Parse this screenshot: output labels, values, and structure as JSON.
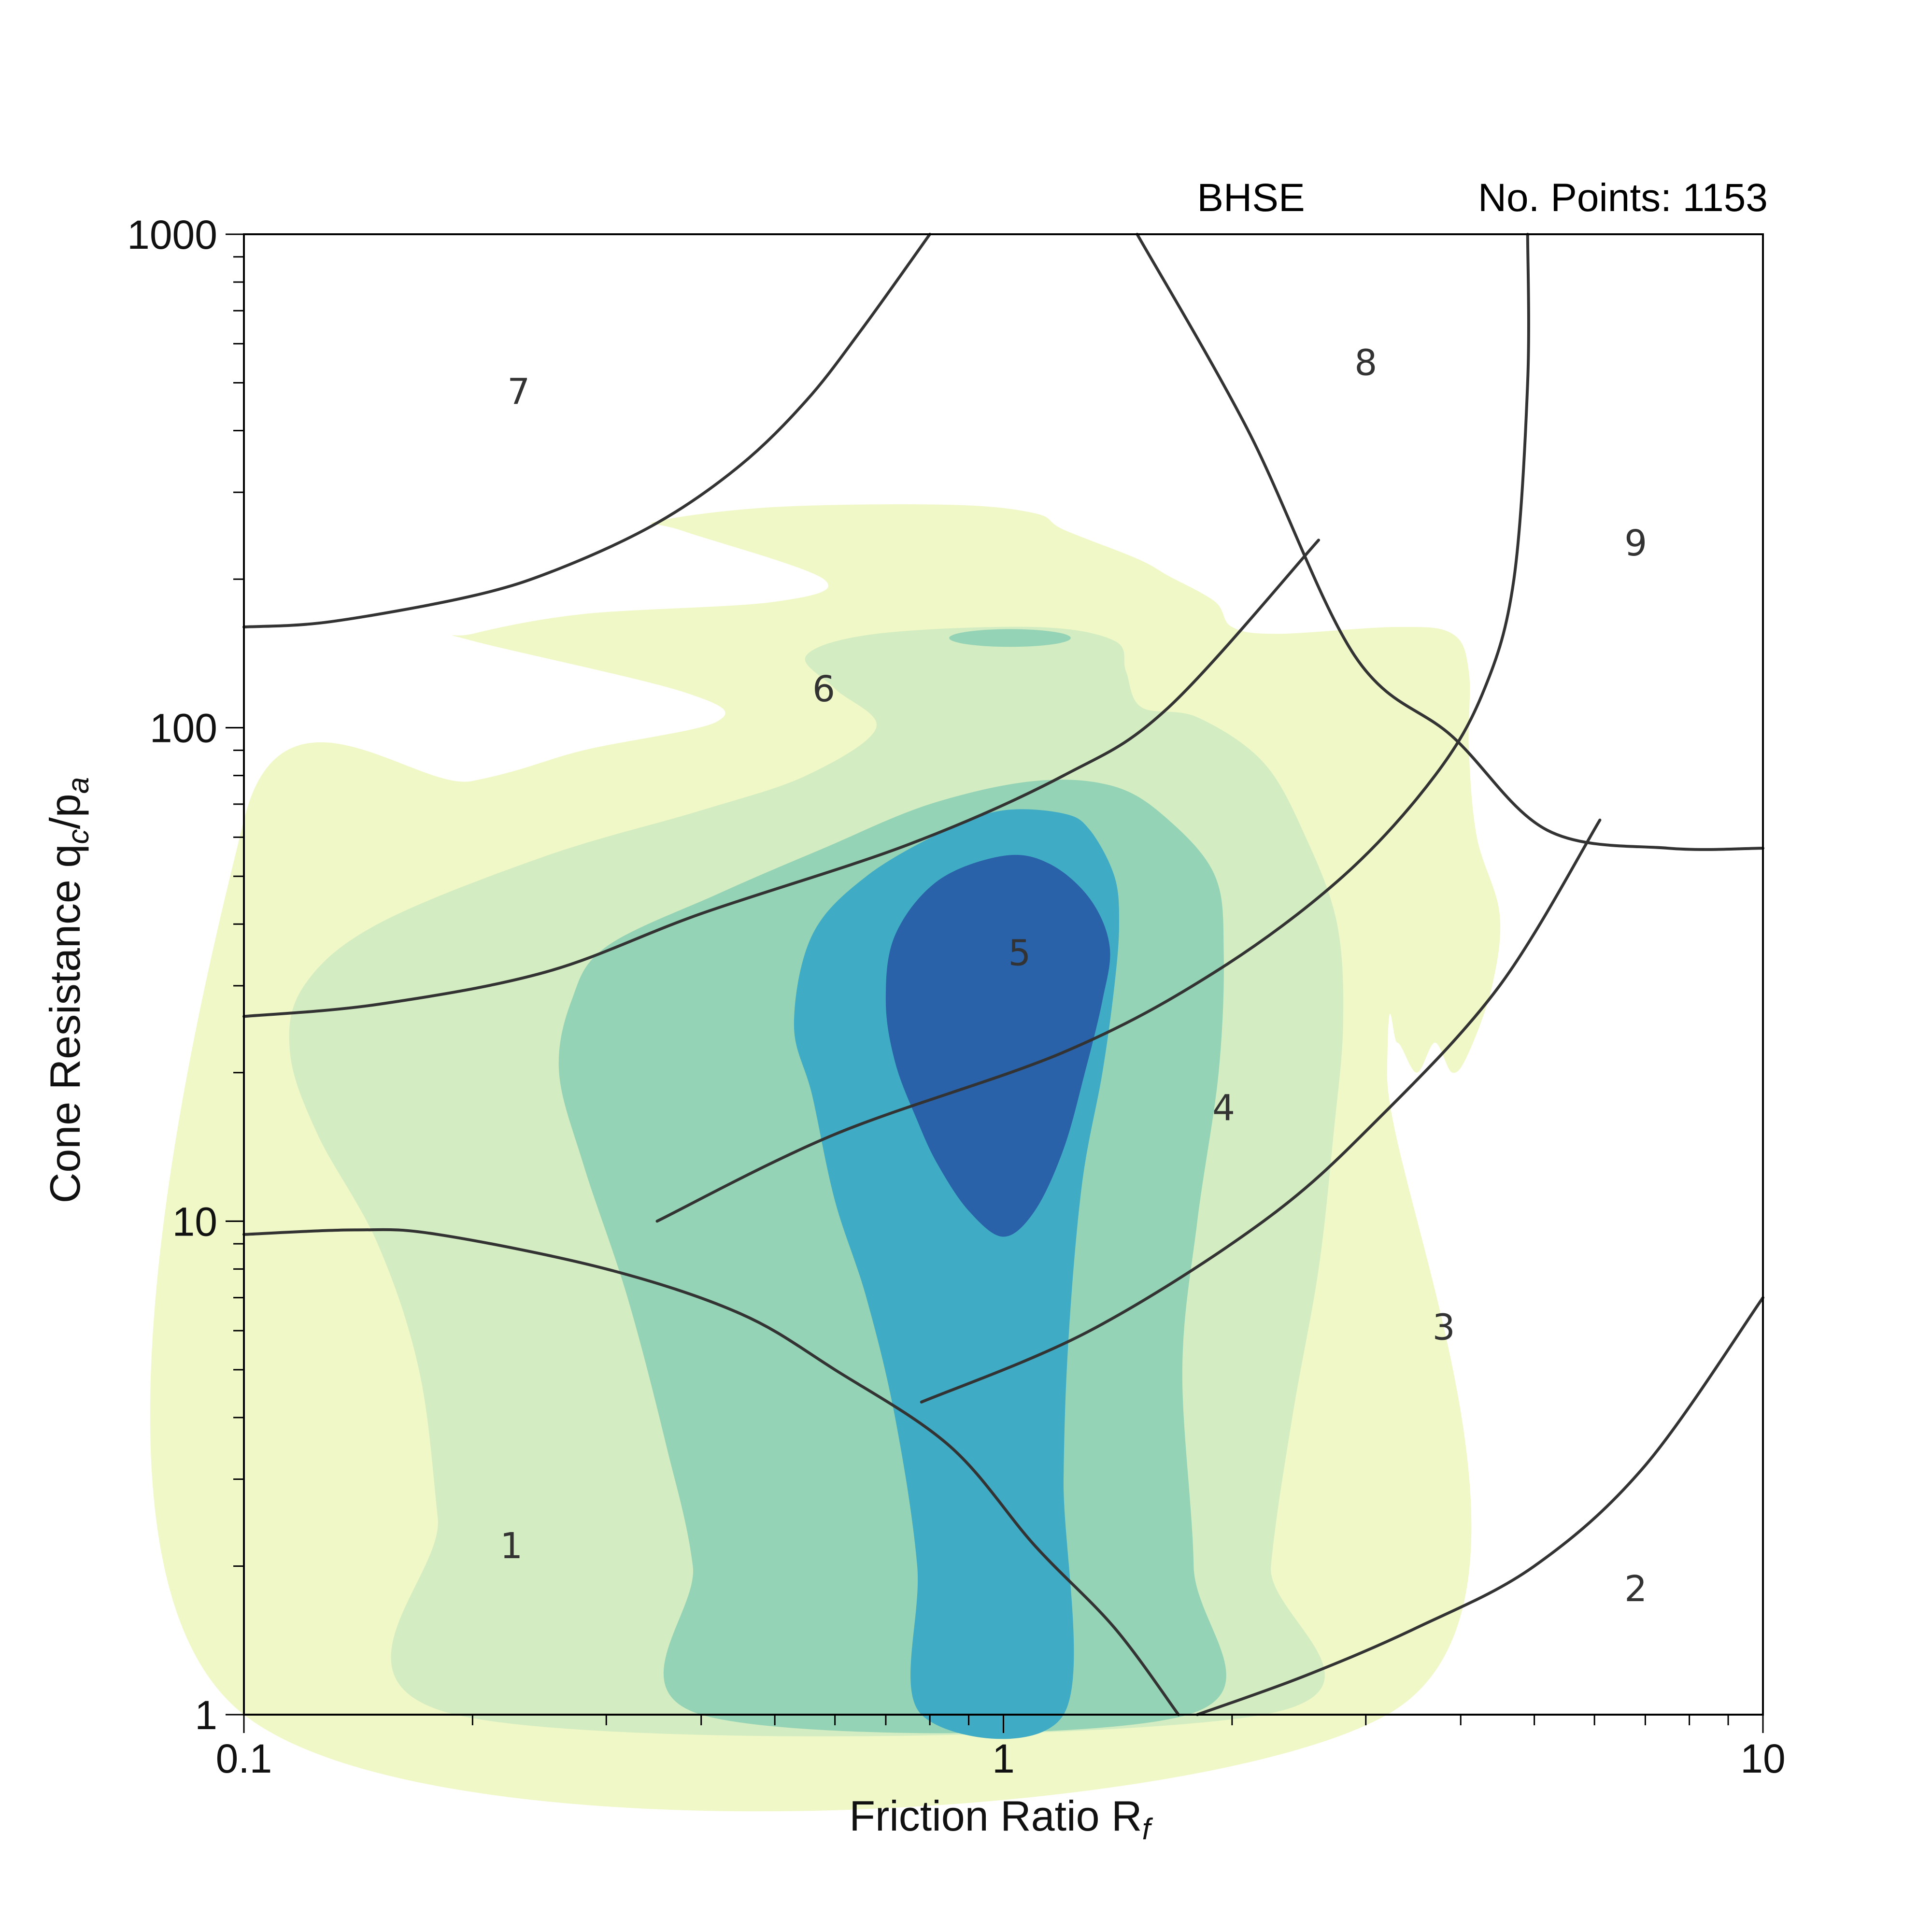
{
  "header": {
    "site": "BHSE",
    "points_label": "No. Points: 1153"
  },
  "colors": {
    "level_1": "#eff8c6",
    "level_2": "#d3ecc1",
    "level_3": "#94d3b5",
    "level_4": "#40abc4",
    "level_5": "#2a62a9",
    "boundary": "#333333",
    "frame": "#000000"
  },
  "chart_data": {
    "type": "contour",
    "xlabel": {
      "main": "Friction Ratio R",
      "sub": "f"
    },
    "ylabel": {
      "main": "Cone Resistance q",
      "sub1": "c",
      "mid": "/p",
      "sub2": "a"
    },
    "xscale": "log",
    "yscale": "log",
    "xlim": [
      0.1,
      10
    ],
    "ylim": [
      1,
      1000
    ],
    "xticks": [
      {
        "value": 0.1,
        "label": "0.1"
      },
      {
        "value": 1,
        "label": "1"
      },
      {
        "value": 10,
        "label": "10"
      }
    ],
    "yticks": [
      {
        "value": 1,
        "label": "1"
      },
      {
        "value": 10,
        "label": "10"
      },
      {
        "value": 100,
        "label": "100"
      },
      {
        "value": 1000,
        "label": "1000"
      }
    ],
    "grid": false,
    "contours": [
      {
        "level": 1,
        "points": [
          [
            0.1,
            1
          ],
          [
            0.1,
            65
          ],
          [
            0.2,
            78
          ],
          [
            0.28,
            90
          ],
          [
            0.42,
            103
          ],
          [
            0.38,
            118
          ],
          [
            0.2,
            150
          ],
          [
            0.2,
            155
          ],
          [
            0.28,
            170
          ],
          [
            0.5,
            180
          ],
          [
            0.58,
            200
          ],
          [
            0.38,
            250
          ],
          [
            0.35,
            262
          ],
          [
            0.5,
            280
          ],
          [
            0.85,
            283
          ],
          [
            1.1,
            272
          ],
          [
            1.2,
            252
          ],
          [
            1.5,
            220
          ],
          [
            1.65,
            203
          ],
          [
            1.9,
            180
          ],
          [
            2.0,
            160
          ],
          [
            2.3,
            155
          ],
          [
            3.3,
            160
          ],
          [
            3.9,
            155
          ],
          [
            4.1,
            130
          ],
          [
            4.1,
            90
          ],
          [
            4.2,
            60
          ],
          [
            4.5,
            42
          ],
          [
            4.4,
            30
          ],
          [
            4.1,
            22
          ],
          [
            3.9,
            20
          ],
          [
            3.7,
            23
          ],
          [
            3.5,
            20
          ],
          [
            3.3,
            23
          ],
          [
            3.2,
            20
          ],
          [
            3.2,
            1
          ]
        ]
      },
      {
        "level": 2,
        "points": [
          [
            0.19,
            1
          ],
          [
            0.18,
            2.5
          ],
          [
            0.17,
            5
          ],
          [
            0.15,
            9
          ],
          [
            0.125,
            15
          ],
          [
            0.115,
            22
          ],
          [
            0.12,
            30
          ],
          [
            0.15,
            40
          ],
          [
            0.25,
            55
          ],
          [
            0.4,
            68
          ],
          [
            0.55,
            80
          ],
          [
            0.68,
            100
          ],
          [
            0.6,
            120
          ],
          [
            0.55,
            140
          ],
          [
            0.68,
            155
          ],
          [
            1.1,
            160
          ],
          [
            1.4,
            150
          ],
          [
            1.45,
            130
          ],
          [
            1.52,
            110
          ],
          [
            1.8,
            105
          ],
          [
            2.2,
            85
          ],
          [
            2.5,
            60
          ],
          [
            2.75,
            40
          ],
          [
            2.8,
            25
          ],
          [
            2.72,
            15
          ],
          [
            2.6,
            8
          ],
          [
            2.4,
            4
          ],
          [
            2.25,
            2
          ],
          [
            2.2,
            1
          ]
        ]
      },
      {
        "level": 3,
        "points": [
          [
            0.4,
            1
          ],
          [
            0.39,
            2
          ],
          [
            0.36,
            3.5
          ],
          [
            0.32,
            7
          ],
          [
            0.28,
            13
          ],
          [
            0.26,
            20
          ],
          [
            0.27,
            28
          ],
          [
            0.3,
            36
          ],
          [
            0.42,
            46
          ],
          [
            0.58,
            57
          ],
          [
            0.8,
            70
          ],
          [
            1.1,
            78
          ],
          [
            1.4,
            76
          ],
          [
            1.65,
            65
          ],
          [
            1.9,
            50
          ],
          [
            1.95,
            35
          ],
          [
            1.92,
            20
          ],
          [
            1.8,
            10
          ],
          [
            1.72,
            5
          ],
          [
            1.78,
            2
          ],
          [
            1.75,
            1
          ]
        ]
      },
      {
        "level": 4,
        "points": [
          [
            0.78,
            1
          ],
          [
            0.77,
            2
          ],
          [
            0.72,
            4
          ],
          [
            0.66,
            7
          ],
          [
            0.6,
            11
          ],
          [
            0.56,
            18
          ],
          [
            0.53,
            25
          ],
          [
            0.56,
            38
          ],
          [
            0.66,
            50
          ],
          [
            0.84,
            62
          ],
          [
            1.0,
            68
          ],
          [
            1.2,
            67
          ],
          [
            1.3,
            62
          ],
          [
            1.4,
            50
          ],
          [
            1.42,
            40
          ],
          [
            1.4,
            30
          ],
          [
            1.35,
            20
          ],
          [
            1.27,
            12
          ],
          [
            1.22,
            6
          ],
          [
            1.2,
            3
          ],
          [
            1.2,
            1
          ]
        ]
      },
      {
        "level": 5,
        "points": [
          [
            1.0,
            9.3
          ],
          [
            0.9,
            10.5
          ],
          [
            0.82,
            13
          ],
          [
            0.77,
            16
          ],
          [
            0.72,
            21
          ],
          [
            0.7,
            28
          ],
          [
            0.72,
            38
          ],
          [
            0.82,
            49
          ],
          [
            1.0,
            55
          ],
          [
            1.15,
            53
          ],
          [
            1.3,
            45
          ],
          [
            1.38,
            36
          ],
          [
            1.35,
            28
          ],
          [
            1.28,
            20
          ],
          [
            1.2,
            14
          ],
          [
            1.1,
            10.5
          ]
        ]
      },
      {
        "level": 3,
        "ellipse": true,
        "center": [
          1.02,
          152
        ],
        "rx": 0.08,
        "ry": 0.018
      }
    ],
    "boundaries": [
      [
        [
          0.1,
          160
        ],
        [
          0.13,
          164
        ],
        [
          0.2,
          185
        ],
        [
          0.26,
          210
        ],
        [
          0.35,
          260
        ],
        [
          0.45,
          340
        ],
        [
          0.55,
          460
        ],
        [
          0.65,
          640
        ],
        [
          0.8,
          1000
        ]
      ],
      [
        [
          1.5,
          1000
        ],
        [
          2.1,
          400
        ],
        [
          2.9,
          140
        ],
        [
          3.9,
          96
        ],
        [
          5.2,
          62
        ],
        [
          7.5,
          57
        ],
        [
          10,
          57
        ]
      ],
      [
        [
          4.9,
          1000
        ],
        [
          4.9,
          500
        ],
        [
          4.7,
          200
        ],
        [
          4.3,
          120
        ],
        [
          3.7,
          80
        ],
        [
          2.8,
          50
        ],
        [
          1.9,
          32
        ],
        [
          1.2,
          22
        ],
        [
          0.6,
          15
        ],
        [
          0.35,
          10
        ]
      ],
      [
        [
          2.6,
          240
        ],
        [
          1.65,
          110
        ],
        [
          1.2,
          80
        ],
        [
          0.75,
          58
        ],
        [
          0.4,
          42
        ],
        [
          0.25,
          32
        ],
        [
          0.15,
          27.5
        ],
        [
          0.1,
          26
        ]
      ],
      [
        [
          0.1,
          9.4
        ],
        [
          0.14,
          9.6
        ],
        [
          0.18,
          9.4
        ],
        [
          0.3,
          8
        ],
        [
          0.45,
          6.5
        ],
        [
          0.6,
          5
        ],
        [
          0.85,
          3.5
        ],
        [
          1.1,
          2.2
        ],
        [
          1.4,
          1.5
        ],
        [
          1.7,
          1
        ]
      ],
      [
        [
          6.1,
          65
        ],
        [
          4.5,
          30
        ],
        [
          3.1,
          16
        ],
        [
          2.2,
          10
        ],
        [
          1.3,
          6
        ],
        [
          0.78,
          4.3
        ]
      ],
      [
        [
          1.8,
          1
        ],
        [
          2.5,
          1.2
        ],
        [
          3.5,
          1.5
        ],
        [
          5,
          2
        ],
        [
          7,
          3.2
        ],
        [
          10,
          7
        ]
      ]
    ],
    "zones": [
      {
        "label": "1",
        "x": 0.225,
        "y": 2.2
      },
      {
        "label": "2",
        "x": 6.8,
        "y": 1.8
      },
      {
        "label": "3",
        "x": 3.8,
        "y": 6.1
      },
      {
        "label": "4",
        "x": 1.95,
        "y": 17
      },
      {
        "label": "5",
        "x": 1.05,
        "y": 35
      },
      {
        "label": "6",
        "x": 0.58,
        "y": 120
      },
      {
        "label": "7",
        "x": 0.23,
        "y": 480
      },
      {
        "label": "8",
        "x": 3.0,
        "y": 550
      },
      {
        "label": "9",
        "x": 6.8,
        "y": 237
      }
    ]
  }
}
